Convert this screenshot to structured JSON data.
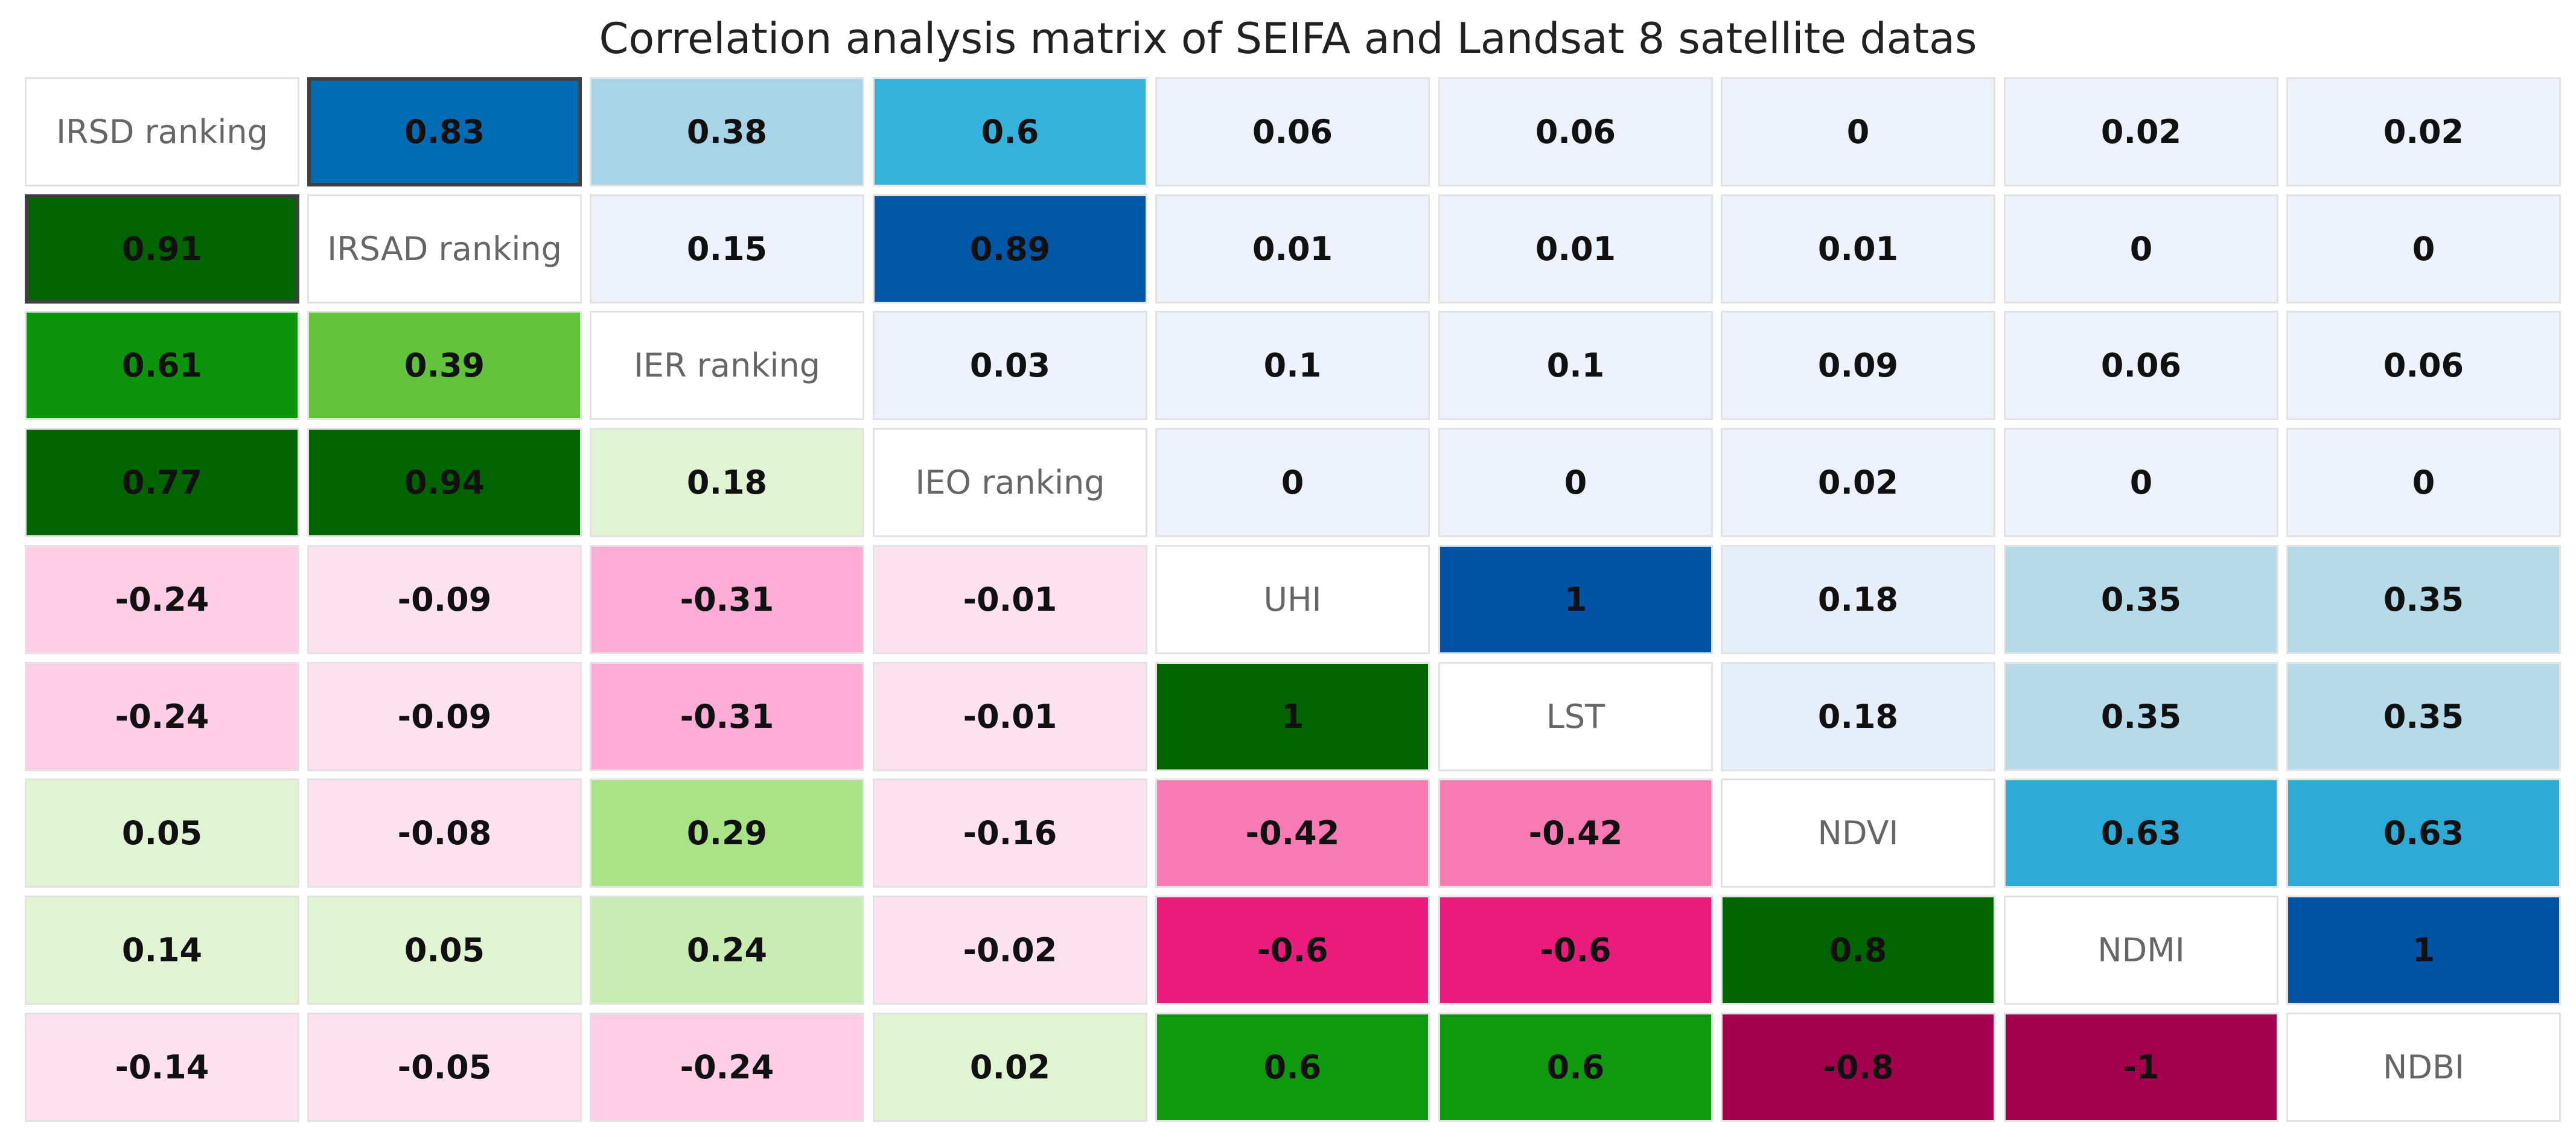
{
  "chart_data": {
    "type": "heatmap",
    "title": "Correlation analysis matrix of SEIFA and Landsat 8 satellite datas",
    "variables": [
      "IRSD ranking",
      "IRSAD ranking",
      "IER ranking",
      "IEO ranking",
      "UHI",
      "LST",
      "NDVI",
      "NDMI",
      "NDBI"
    ],
    "values": [
      [
        null,
        0.83,
        0.38,
        0.6,
        0.06,
        0.06,
        0,
        0.02,
        0.02
      ],
      [
        0.91,
        null,
        0.15,
        0.89,
        0.01,
        0.01,
        0.01,
        0,
        0
      ],
      [
        0.61,
        0.39,
        null,
        0.03,
        0.1,
        0.1,
        0.09,
        0.06,
        0.06
      ],
      [
        0.77,
        0.94,
        0.18,
        null,
        0,
        0,
        0.02,
        0,
        0
      ],
      [
        -0.24,
        -0.09,
        -0.31,
        -0.01,
        null,
        1,
        0.18,
        0.35,
        0.35
      ],
      [
        -0.24,
        -0.09,
        -0.31,
        -0.01,
        1,
        null,
        0.18,
        0.35,
        0.35
      ],
      [
        0.05,
        -0.08,
        0.29,
        -0.16,
        -0.42,
        -0.42,
        null,
        0.63,
        0.63
      ],
      [
        0.14,
        0.05,
        0.24,
        -0.02,
        -0.6,
        -0.6,
        0.8,
        null,
        1
      ],
      [
        -0.14,
        -0.05,
        -0.24,
        0.02,
        0.6,
        0.6,
        -0.8,
        -1,
        null
      ]
    ],
    "upper_triangle_palette": "blues",
    "lower_triangle_palette": "pink-green diverging",
    "highlighted_cells": [
      [
        0,
        1
      ],
      [
        1,
        0
      ]
    ],
    "colors": {
      "diagonal_background": "#ffffff",
      "cell_border": "#e3e3e3",
      "highlight_border": "#404040"
    }
  }
}
